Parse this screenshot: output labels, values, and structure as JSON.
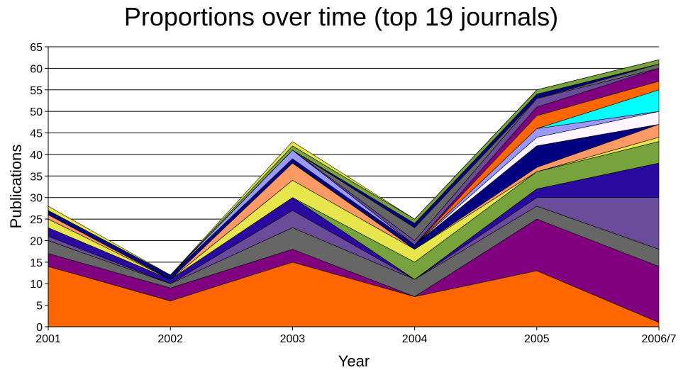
{
  "chart_data": {
    "type": "area",
    "stacked": true,
    "title": "Proportions over time (top 19 journals)",
    "xlabel": "Year",
    "ylabel": "Publications",
    "categories": [
      "2001",
      "2002",
      "2003",
      "2004",
      "2005",
      "2006/7"
    ],
    "ylim": [
      0,
      65
    ],
    "yticks": [
      0,
      5,
      10,
      15,
      20,
      25,
      30,
      35,
      40,
      45,
      50,
      55,
      60,
      65
    ],
    "grid": true,
    "legend": "none",
    "series": [
      {
        "color": "#ff6600",
        "values": [
          14,
          6,
          15,
          7,
          13,
          1
        ]
      },
      {
        "color": "#800080",
        "values": [
          3,
          3,
          3,
          0,
          12,
          13
        ]
      },
      {
        "color": "#666666",
        "values": [
          3,
          1,
          5,
          4,
          3,
          4
        ]
      },
      {
        "color": "#6b4c9a",
        "values": [
          1,
          0,
          4,
          0,
          2,
          12
        ]
      },
      {
        "color": "#2a0aa0",
        "values": [
          2,
          1,
          3,
          0,
          2,
          8
        ]
      },
      {
        "color": "#77a33c",
        "values": [
          0,
          0,
          0,
          4,
          4,
          5
        ]
      },
      {
        "color": "#e6e64c",
        "values": [
          2,
          0,
          4,
          3,
          0,
          1
        ]
      },
      {
        "color": "#ff9966",
        "values": [
          1,
          0,
          4,
          0,
          1,
          3
        ]
      },
      {
        "color": "#000080",
        "values": [
          1,
          1,
          1,
          1,
          5,
          0
        ]
      },
      {
        "color": "#fff5ff",
        "values": [
          0,
          0,
          0,
          0,
          2,
          3
        ]
      },
      {
        "color": "#9999ff",
        "values": [
          0,
          0,
          2,
          0,
          2,
          0
        ]
      },
      {
        "color": "#00ffff",
        "values": [
          0,
          0,
          0,
          0,
          0,
          5
        ]
      },
      {
        "color": "#ff6600",
        "values": [
          0,
          0,
          0,
          0,
          3,
          2
        ]
      },
      {
        "color": "#800080",
        "values": [
          0,
          0,
          0,
          0,
          2,
          3
        ]
      },
      {
        "color": "#6b4c9a",
        "values": [
          0,
          0,
          0,
          1,
          2,
          0
        ]
      },
      {
        "color": "#666666",
        "values": [
          0,
          0,
          0,
          3,
          0,
          1
        ]
      },
      {
        "color": "#000080",
        "values": [
          0,
          0,
          0,
          1,
          1,
          0
        ]
      },
      {
        "color": "#77a33c",
        "values": [
          0,
          0,
          1,
          1,
          1,
          1
        ]
      },
      {
        "color": "#e6e64c",
        "values": [
          1,
          0,
          1,
          0,
          0,
          0
        ]
      }
    ]
  }
}
